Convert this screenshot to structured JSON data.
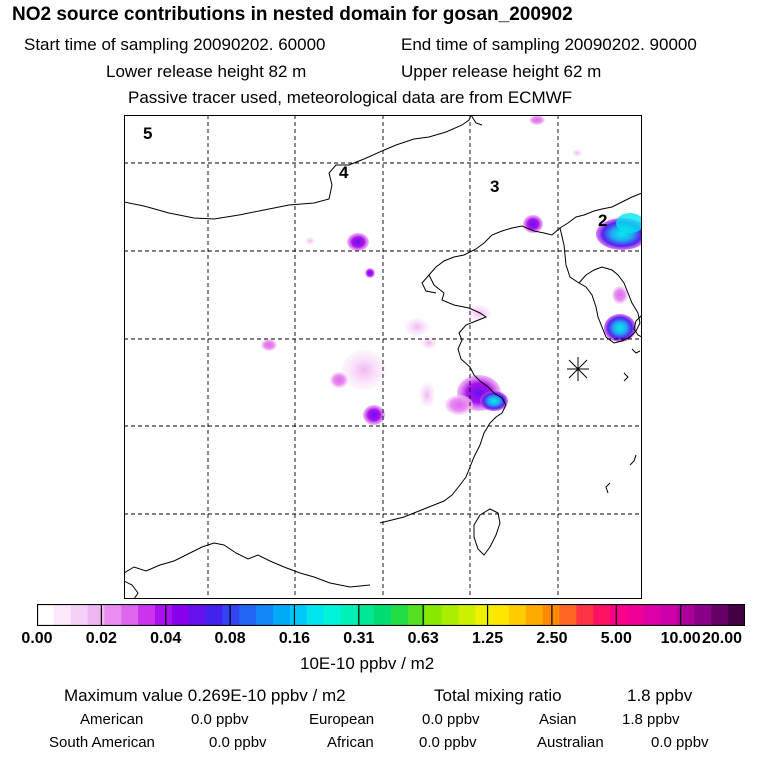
{
  "header": {
    "title": "NO2 source contributions in nested domain for gosan_200902",
    "start_label": "Start time of sampling 20090202. 60000",
    "end_label": "End time of sampling 20090202. 90000",
    "lower_label": "Lower release height   82 m",
    "upper_label": "Upper release height   62 m",
    "note": "Passive tracer used, meteorological data are from ECMWF"
  },
  "map": {
    "region_labels": [
      "5",
      "4",
      "3",
      "2"
    ],
    "receptor_marker": "asterisk-receptor-icon"
  },
  "colorbar": {
    "ticks": [
      "0.00",
      "0.02",
      "0.04",
      "0.08",
      "0.16",
      "0.31",
      "0.63",
      "1.25",
      "2.50",
      "5.00",
      "10.00",
      "20.00"
    ],
    "colors": [
      "#ffffff",
      "#fbe8fb",
      "#f6d1f7",
      "#f0b6f2",
      "#e98ef0",
      "#df66ef",
      "#cc33ee",
      "#aa11ee",
      "#8800ee",
      "#6611ee",
      "#4422ee",
      "#3344f0",
      "#2266f4",
      "#1188f6",
      "#00aaf8",
      "#00c8fa",
      "#00e6ee",
      "#00f5d8",
      "#00f0b8",
      "#00e895",
      "#00dd70",
      "#22dd44",
      "#55e022",
      "#88e800",
      "#aaee00",
      "#ccf000",
      "#eef000",
      "#ffe600",
      "#ffcc00",
      "#ffaa00",
      "#ff8a00",
      "#ff6622",
      "#ff3344",
      "#ff1166",
      "#ff0088",
      "#ee0099",
      "#dd00a8",
      "#cc00aa",
      "#aa0099",
      "#880088",
      "#660066",
      "#440044"
    ],
    "unit": "10E-10 ppbv / m2"
  },
  "stats": {
    "max_label": "Maximum value  0.269E-10 ppbv / m2",
    "total_label": "Total mixing ratio",
    "total_value": "1.8 ppbv",
    "regions": [
      {
        "name": "American",
        "value": "0.0 ppbv"
      },
      {
        "name": "European",
        "value": "0.0 ppbv"
      },
      {
        "name": "Asian",
        "value": "1.8 ppbv"
      },
      {
        "name": "South American",
        "value": "0.0 ppbv"
      },
      {
        "name": "African",
        "value": "0.0 ppbv"
      },
      {
        "name": "Australian",
        "value": "0.0 ppbv"
      }
    ]
  }
}
